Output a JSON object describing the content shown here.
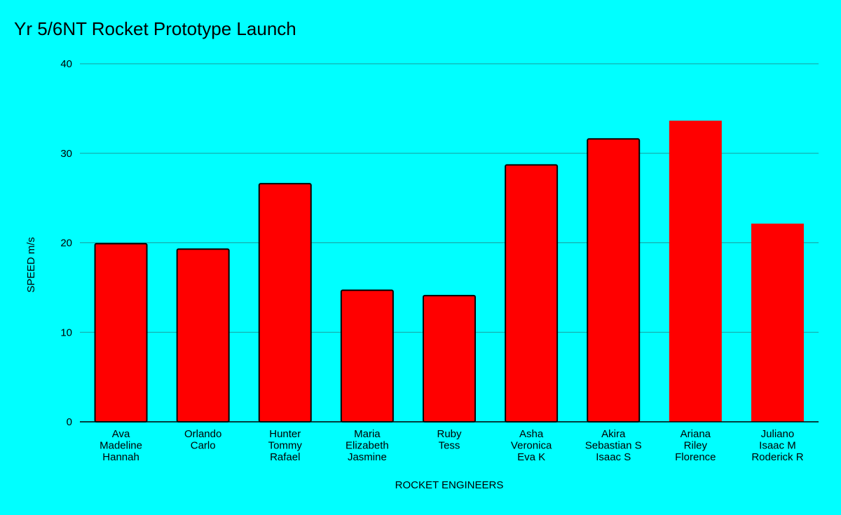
{
  "chart_data": {
    "type": "bar",
    "title": "Yr 5/6NT Rocket Prototype Launch",
    "xlabel": "ROCKET ENGINEERS",
    "ylabel": "SPEED m/s",
    "ylim": [
      0,
      40
    ],
    "yticks": [
      "0",
      "10",
      "20",
      "30",
      "40"
    ],
    "grid": true,
    "categories": [
      [
        "Ava",
        "Madeline",
        "Hannah"
      ],
      [
        "Orlando",
        "Carlo"
      ],
      [
        "Hunter",
        "Tommy",
        "Rafael"
      ],
      [
        "Maria",
        "Elizabeth",
        "Jasmine"
      ],
      [
        "Ruby",
        "Tess"
      ],
      [
        "Asha",
        "Veronica",
        "Eva K"
      ],
      [
        "Akira",
        "Sebastian S",
        "Isaac S"
      ],
      [
        "Ariana",
        "Riley",
        "Florence"
      ],
      [
        "Juliano",
        "Isaac M",
        "Roderick R"
      ]
    ],
    "values": [
      19.9,
      19.3,
      26.6,
      14.7,
      14.1,
      28.7,
      31.6,
      33.6,
      22.1
    ],
    "outlined": [
      true,
      true,
      true,
      true,
      true,
      true,
      true,
      false,
      false
    ],
    "colors": {
      "background": "#00ffff",
      "bar": "#ff0000",
      "bar_outline": "#000000",
      "gridline": "#1a9e9e",
      "axis": "#000000"
    }
  }
}
